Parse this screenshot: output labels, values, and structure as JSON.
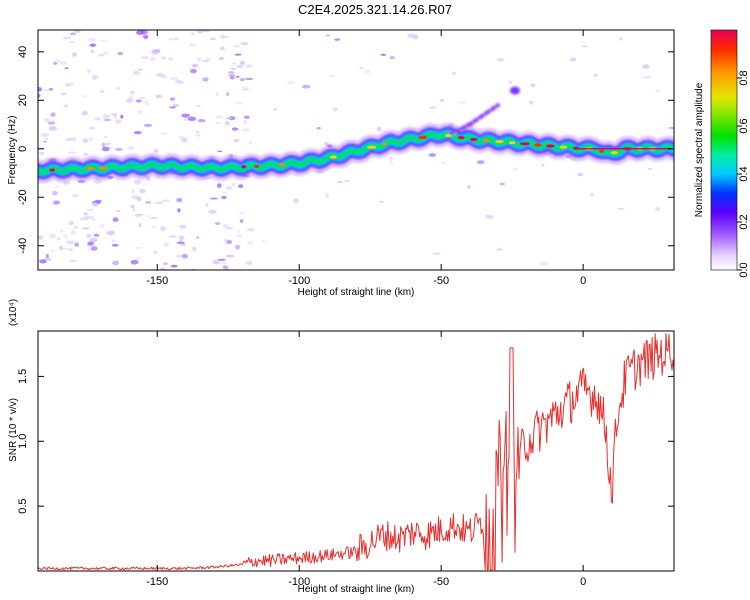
{
  "figure_title": "C2E4.2025.321.14.26.R07",
  "chart_data": [
    {
      "type": "heatmap",
      "xlabel": "Height of straight line (km)",
      "ylabel": "Frequency (Hz)",
      "xlim": [
        -192,
        32
      ],
      "ylim": [
        -50,
        49
      ],
      "x_ticks": [
        -150,
        -100,
        -50,
        0
      ],
      "y_ticks": [
        -40,
        -20,
        0,
        20,
        40
      ],
      "colorbar": {
        "label": "Normalized spectral amplitude",
        "range": [
          0,
          1
        ],
        "ticks": [
          0.0,
          0.2,
          0.4,
          0.6,
          0.8
        ],
        "tick_labels": [
          "0.0",
          "0.2",
          "0.4",
          "0.6",
          "0.8"
        ]
      },
      "ridge": {
        "x": [
          -192,
          -170,
          -150,
          -130,
          -110,
          -100,
          -90,
          -80,
          -70,
          -60,
          -50,
          -40,
          -30,
          -20,
          -10,
          0,
          5,
          8,
          10,
          15,
          20,
          32
        ],
        "y": [
          -9,
          -8,
          -7,
          -8,
          -7,
          -6,
          -4,
          -1,
          2,
          4,
          6,
          4,
          3,
          2,
          1,
          0,
          0,
          -2,
          -2,
          0,
          0,
          0
        ]
      },
      "features": {
        "branch_x": [
          -47,
          -40,
          -35,
          -30
        ],
        "branch_y": [
          6,
          10,
          14,
          18
        ],
        "blob": {
          "x": -24,
          "y": 24
        }
      }
    },
    {
      "type": "line",
      "xlabel": "Height of straight line (km)",
      "ylabel": "SNR (10 * v/v)",
      "multiplier_label": "(x10⁴)",
      "xlim": [
        -192,
        32
      ],
      "ylim": [
        0,
        1.85
      ],
      "x_ticks": [
        -150,
        -100,
        -50,
        0
      ],
      "y_ticks": [
        0.5,
        1.0,
        1.5
      ],
      "y_tick_labels": [
        "0.5",
        "1.0",
        "1.5"
      ],
      "color": "#e8302e",
      "series": [
        {
          "x": [
            -192,
            -180,
            -170,
            -160,
            -150,
            -140,
            -130,
            -120,
            -115,
            -110,
            -100,
            -90,
            -80,
            -75,
            -70,
            -65,
            -60,
            -55,
            -50,
            -45,
            -40,
            -35,
            -32,
            -30,
            -28,
            -26,
            -25,
            -23,
            -20,
            -15,
            -10,
            -5,
            0,
            5,
            8,
            10,
            12,
            15,
            20,
            25,
            32
          ],
          "y": [
            0.02,
            0.02,
            0.02,
            0.02,
            0.02,
            0.02,
            0.03,
            0.05,
            0.08,
            0.08,
            0.1,
            0.12,
            0.15,
            0.22,
            0.28,
            0.25,
            0.3,
            0.28,
            0.32,
            0.35,
            0.3,
            0.4,
            0.55,
            0.8,
            0.9,
            1.2,
            1.0,
            0.9,
            1.0,
            1.1,
            1.2,
            1.3,
            1.4,
            1.35,
            1.1,
            0.6,
            1.2,
            1.5,
            1.6,
            1.65,
            1.72
          ]
        }
      ]
    }
  ]
}
